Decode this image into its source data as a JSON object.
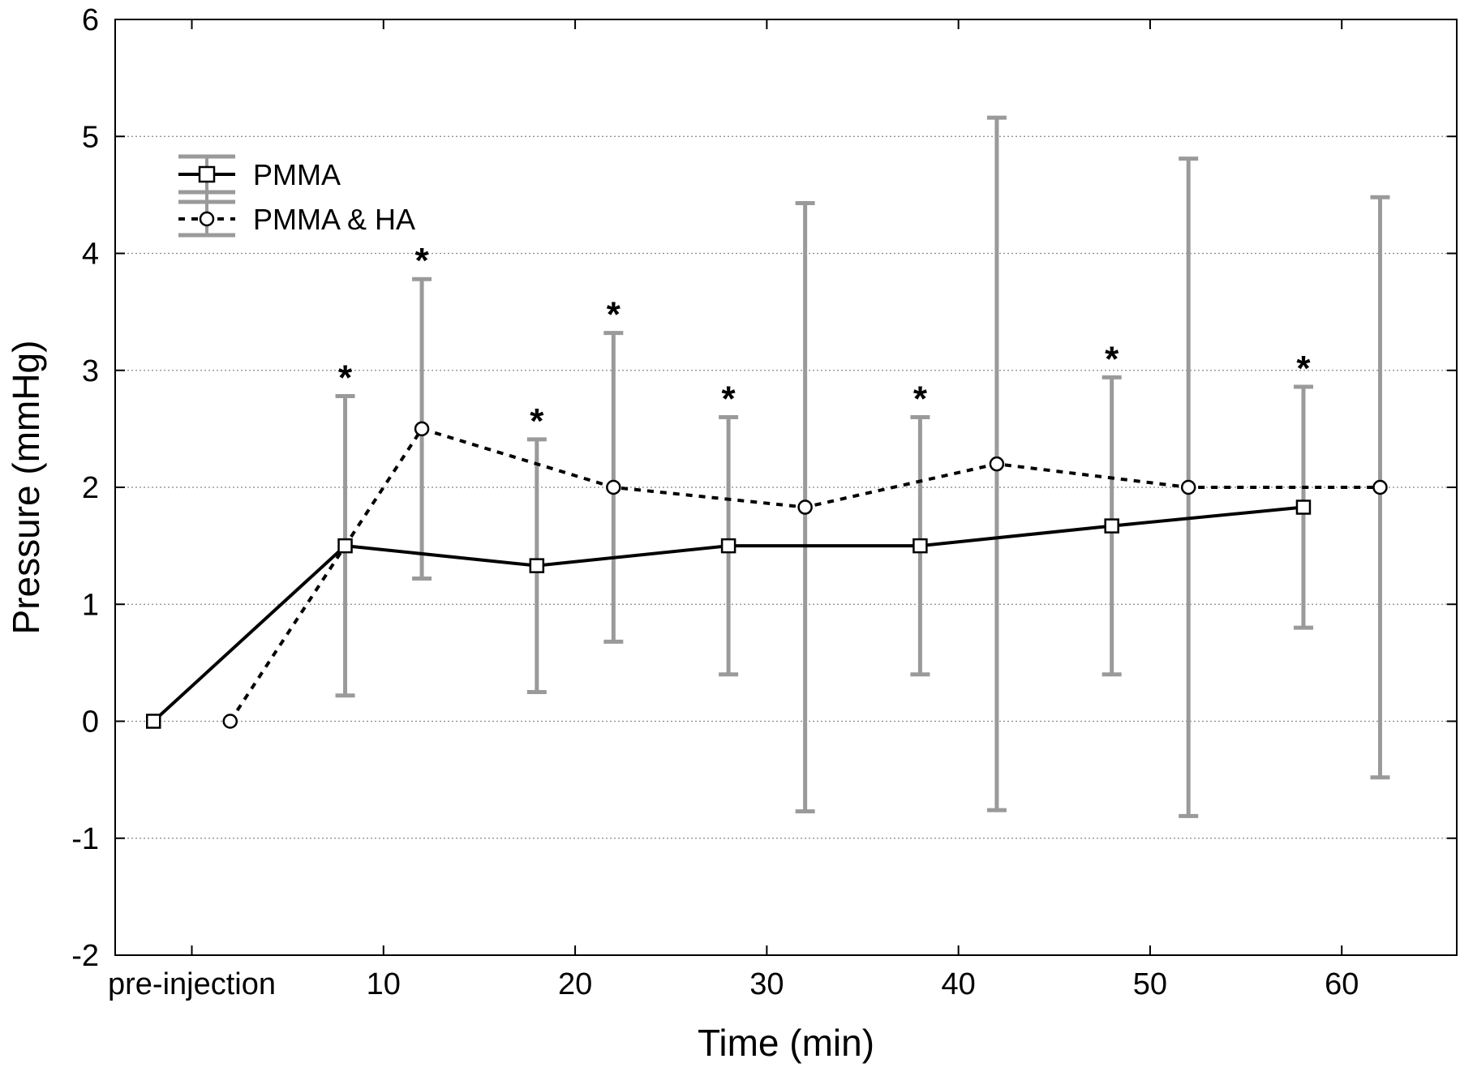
{
  "chart_data": {
    "type": "line",
    "xlabel": "Time (min)",
    "ylabel": "Pressure (mmHg)",
    "ylim": [
      -2,
      6
    ],
    "yticks": [
      "-2",
      "-1",
      "0",
      "1",
      "2",
      "3",
      "4",
      "5",
      "6"
    ],
    "xticks": [
      "pre-injection",
      "10",
      "20",
      "30",
      "40",
      "50",
      "60"
    ],
    "grid": "horizontal dotted",
    "legend_position": "top-left",
    "colors": {
      "line": "#000000",
      "error_bar": "#9a9a9a",
      "grid": "#888888"
    },
    "series": [
      {
        "name": "PMMA",
        "line_style": "solid",
        "marker": "square",
        "points": [
          {
            "x": -2,
            "y": 0
          },
          {
            "x": 8,
            "y": 1.5,
            "low": 0.22,
            "high": 2.78,
            "significant": true
          },
          {
            "x": 18,
            "y": 1.33,
            "low": 0.25,
            "high": 2.41,
            "significant": true
          },
          {
            "x": 28,
            "y": 1.5,
            "low": 0.4,
            "high": 2.6,
            "significant": true
          },
          {
            "x": 38,
            "y": 1.5,
            "low": 0.4,
            "high": 2.6,
            "significant": true
          },
          {
            "x": 48,
            "y": 1.67,
            "low": 0.4,
            "high": 2.94,
            "significant": true
          },
          {
            "x": 58,
            "y": 1.83,
            "low": 0.8,
            "high": 2.86,
            "significant": true
          }
        ]
      },
      {
        "name": "PMMA & HA",
        "line_style": "dotted",
        "marker": "circle",
        "points": [
          {
            "x": 2,
            "y": 0
          },
          {
            "x": 12,
            "y": 2.5,
            "low": 1.22,
            "high": 3.78,
            "significant": true
          },
          {
            "x": 22,
            "y": 2.0,
            "low": 0.68,
            "high": 3.32,
            "significant": true
          },
          {
            "x": 32,
            "y": 1.83,
            "low": -0.77,
            "high": 4.43
          },
          {
            "x": 42,
            "y": 2.2,
            "low": -0.76,
            "high": 5.16
          },
          {
            "x": 52,
            "y": 2.0,
            "low": -0.81,
            "high": 4.81
          },
          {
            "x": 62,
            "y": 2.0,
            "low": -0.48,
            "high": 4.48
          }
        ]
      }
    ],
    "significance_marker": "*"
  }
}
